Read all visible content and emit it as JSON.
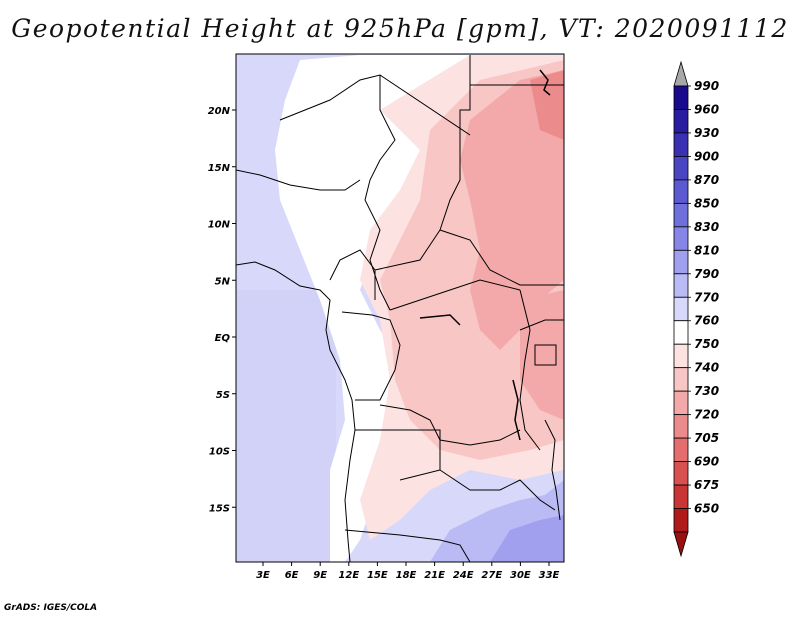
{
  "title": "Geopotential Height at 925hPa [gpm], VT: 2020091112",
  "credit": "GrADS: IGES/COLA",
  "map": {
    "lat_ticks": [
      {
        "label": "20N",
        "lat": 20
      },
      {
        "label": "15N",
        "lat": 15
      },
      {
        "label": "10N",
        "lat": 10
      },
      {
        "label": "5N",
        "lat": 5
      },
      {
        "label": "EQ",
        "lat": 0
      },
      {
        "label": "5S",
        "lat": -5
      },
      {
        "label": "10S",
        "lat": -10
      },
      {
        "label": "15S",
        "lat": -15
      }
    ],
    "lon_ticks": [
      {
        "label": "3E",
        "lon": 3
      },
      {
        "label": "6E",
        "lon": 6
      },
      {
        "label": "9E",
        "lon": 9
      },
      {
        "label": "12E",
        "lon": 12
      },
      {
        "label": "15E",
        "lon": 15
      },
      {
        "label": "18E",
        "lon": 18
      },
      {
        "label": "21E",
        "lon": 21
      },
      {
        "label": "24E",
        "lon": 24
      },
      {
        "label": "27E",
        "lon": 27
      },
      {
        "label": "30E",
        "lon": 30
      },
      {
        "label": "33E",
        "lon": 33
      }
    ]
  },
  "colorbar": {
    "levels": [
      {
        "label": "990",
        "color": "#1a0a8c"
      },
      {
        "label": "960",
        "color": "#2a1ca0"
      },
      {
        "label": "930",
        "color": "#3a30b2"
      },
      {
        "label": "900",
        "color": "#4a45c2"
      },
      {
        "label": "870",
        "color": "#5c5ad0"
      },
      {
        "label": "850",
        "color": "#6f70dc"
      },
      {
        "label": "830",
        "color": "#8686e6"
      },
      {
        "label": "810",
        "color": "#a0a0ef"
      },
      {
        "label": "790",
        "color": "#babaf5"
      },
      {
        "label": "770",
        "color": "#d8d8fa"
      },
      {
        "label": "760",
        "color": "#ffffff"
      },
      {
        "label": "750",
        "color": "#fde2e2"
      },
      {
        "label": "740",
        "color": "#f9c6c6"
      },
      {
        "label": "730",
        "color": "#f3a9a9"
      },
      {
        "label": "720",
        "color": "#ec8b8b"
      },
      {
        "label": "705",
        "color": "#e46e6e"
      },
      {
        "label": "690",
        "color": "#d95050"
      },
      {
        "label": "675",
        "color": "#c93434"
      },
      {
        "label": "650",
        "color": "#b01a1a"
      }
    ],
    "top_arrow_color": "#a8a8a8",
    "bottom_arrow_color": "#9a1010"
  }
}
